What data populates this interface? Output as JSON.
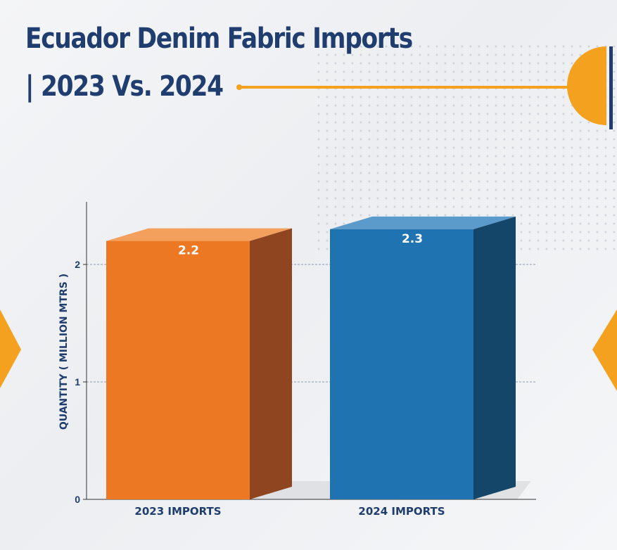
{
  "title": {
    "line1": "Ecuador Denim Fabric Imports",
    "line2": "| 2023  Vs.  2024"
  },
  "colors": {
    "title": "#1f3d6e",
    "accent": "#f4a11f",
    "bar_2023": "#ed7823",
    "bar_2024": "#1f73b1"
  },
  "chart_data": {
    "type": "bar",
    "categories": [
      "2023 IMPORTS",
      "2024 IMPORTS"
    ],
    "values": [
      2.2,
      2.3
    ],
    "data_labels": [
      "2.2",
      "2.3"
    ],
    "ylabel": "QUANTITY ( MILLION MTRS )",
    "xlabel": "",
    "ylim": [
      0,
      2.5
    ],
    "yticks": [
      0,
      1,
      2
    ],
    "grid": true,
    "legend": "none"
  }
}
